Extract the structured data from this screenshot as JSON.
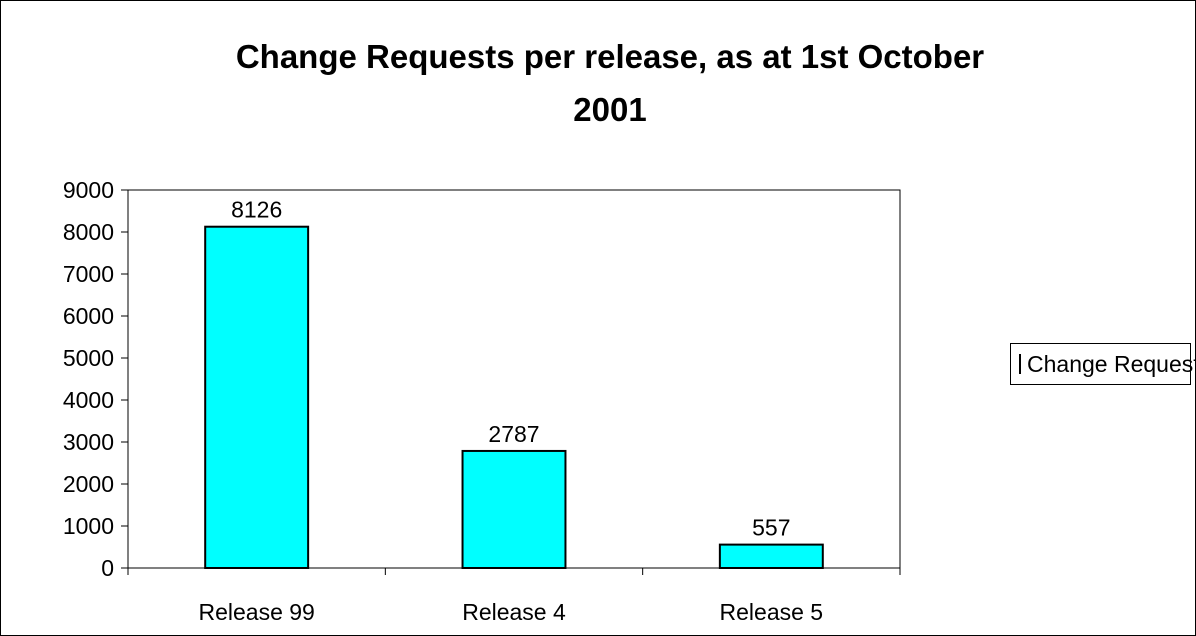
{
  "chart_data": {
    "type": "bar",
    "title_line1": "Change Requests per release, as at 1st October",
    "title_line2": "2001",
    "categories": [
      "Release 99",
      "Release 4",
      "Release 5"
    ],
    "series": [
      {
        "name": "Change Requests",
        "values": [
          8126,
          2787,
          557
        ],
        "color": "#00FFFF"
      }
    ],
    "data_labels": [
      "8126",
      "2787",
      "557"
    ],
    "ylim": [
      0,
      9000
    ],
    "yticks": [
      "0",
      "1000",
      "2000",
      "3000",
      "4000",
      "5000",
      "6000",
      "7000",
      "8000",
      "9000"
    ],
    "grid": false,
    "legend_position": "right"
  }
}
